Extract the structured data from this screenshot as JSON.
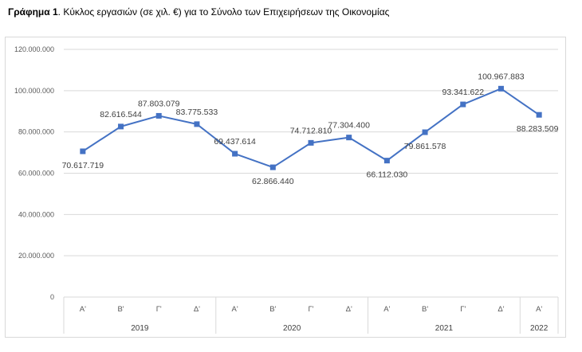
{
  "caption": {
    "label": "Γράφημα 1",
    "text": ". Κύκλος εργασιών (σε χιλ. €) για το Σύνολο των Επιχειρήσεων της Οικονομίας"
  },
  "chart_data": {
    "type": "line",
    "title": "",
    "xlabel": "",
    "ylabel": "",
    "ylim": [
      0,
      120000000
    ],
    "yticks": [
      0,
      20000000,
      40000000,
      60000000,
      80000000,
      100000000,
      120000000
    ],
    "ytick_labels": [
      "0",
      "20.000.000",
      "40.000.000",
      "60.000.000",
      "80.000.000",
      "100.000.000",
      "120.000.000"
    ],
    "grid": true,
    "legend": "none",
    "categories": [
      "Α'",
      "Β'",
      "Γ'",
      "Δ'",
      "Α'",
      "Β'",
      "Γ'",
      "Δ'",
      "Α'",
      "Β'",
      "Γ'",
      "Δ'",
      "Α'"
    ],
    "years": [
      {
        "label": "2019",
        "count": 4
      },
      {
        "label": "2020",
        "count": 4
      },
      {
        "label": "2021",
        "count": 4
      },
      {
        "label": "2022",
        "count": 1
      }
    ],
    "series": [
      {
        "values": [
          70617719,
          82616544,
          87803079,
          83775533,
          69437614,
          62866440,
          74712810,
          77304400,
          66112030,
          79861578,
          93341622,
          100967883,
          88283509
        ],
        "labels": [
          "70.617.719",
          "82.616.544",
          "87.803.079",
          "83.775.533",
          "69.437.614",
          "62.866.440",
          "74.712.810",
          "77.304.400",
          "66.112.030",
          "79.861.578",
          "93.341.622",
          "100.967.883",
          "88.283.509"
        ],
        "label_pos": [
          "below",
          "above",
          "above",
          "above",
          "above",
          "below",
          "above",
          "above",
          "below",
          "below",
          "above",
          "above",
          "below"
        ],
        "color": "#4472c4"
      }
    ]
  }
}
